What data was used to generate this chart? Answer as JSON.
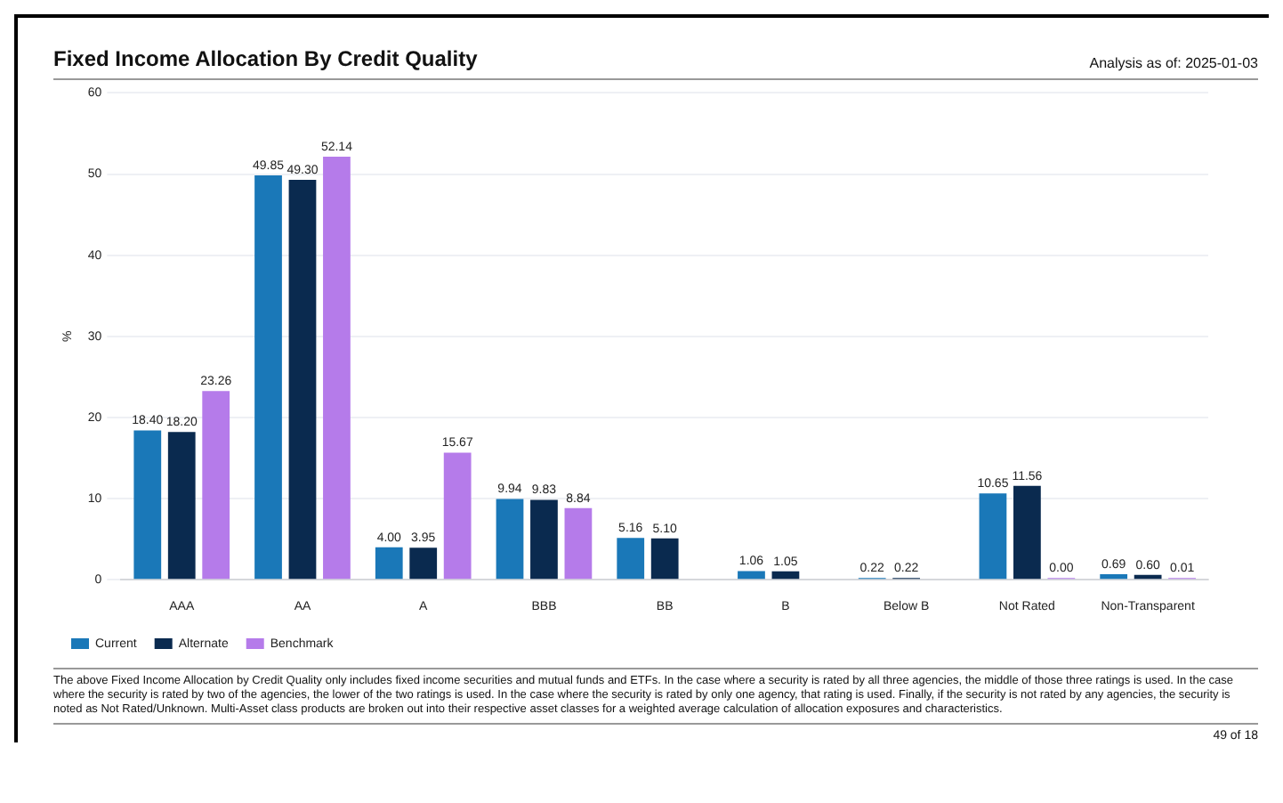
{
  "chart_data": {
    "type": "bar",
    "title": "Fixed Income Allocation By Credit Quality",
    "ylabel": "%",
    "categories": [
      "AAA",
      "AA",
      "A",
      "BBB",
      "BB",
      "B",
      "Below B",
      "Not Rated",
      "Non-Transparent"
    ],
    "series": [
      {
        "name": "Current",
        "color": "#1a78b8",
        "values": [
          18.4,
          49.85,
          4.0,
          9.94,
          5.16,
          1.06,
          0.22,
          10.65,
          0.69
        ],
        "value_labels": [
          "18.40",
          "49.85",
          "4.00",
          "9.94",
          "5.16",
          "1.06",
          "0.22",
          "10.65",
          "0.69"
        ]
      },
      {
        "name": "Alternate",
        "color": "#0a2a4f",
        "values": [
          18.2,
          49.3,
          3.95,
          9.83,
          5.1,
          1.05,
          0.22,
          11.56,
          0.6
        ],
        "value_labels": [
          "18.20",
          "49.30",
          "3.95",
          "9.83",
          "5.10",
          "1.05",
          "0.22",
          "11.56",
          "0.60"
        ]
      },
      {
        "name": "Benchmark",
        "color": "#b57bea",
        "values": [
          23.26,
          52.14,
          15.67,
          8.84,
          null,
          null,
          null,
          0.0,
          0.01
        ],
        "value_labels": [
          "23.26",
          "52.14",
          "15.67",
          "8.84",
          null,
          null,
          null,
          "0.00",
          "0.01"
        ]
      }
    ],
    "ylim": [
      0,
      60
    ],
    "yticks": [
      0,
      10,
      20,
      30,
      40,
      50,
      60
    ],
    "grid": "y",
    "legend": "bottom left",
    "annotations": [
      "Analysis as of:  2025-01-03",
      "The above Fixed Income Allocation by Credit Quality only includes fixed income securities and mutual funds and ETFs. In the case where a security is rated by all three agencies, the middle of those three ratings is used. In the case where the security is rated by two of the agencies, the lower of the two ratings is used. In the case where the security is rated by only one agency, that rating is used. Finally, if the security is not rated by any agencies, the security is noted as Not Rated/Unknown. Multi-Asset class products are broken out into their respective asset classes for a weighted average calculation of allocation exposures and characteristics.",
      "49 of 18"
    ]
  }
}
